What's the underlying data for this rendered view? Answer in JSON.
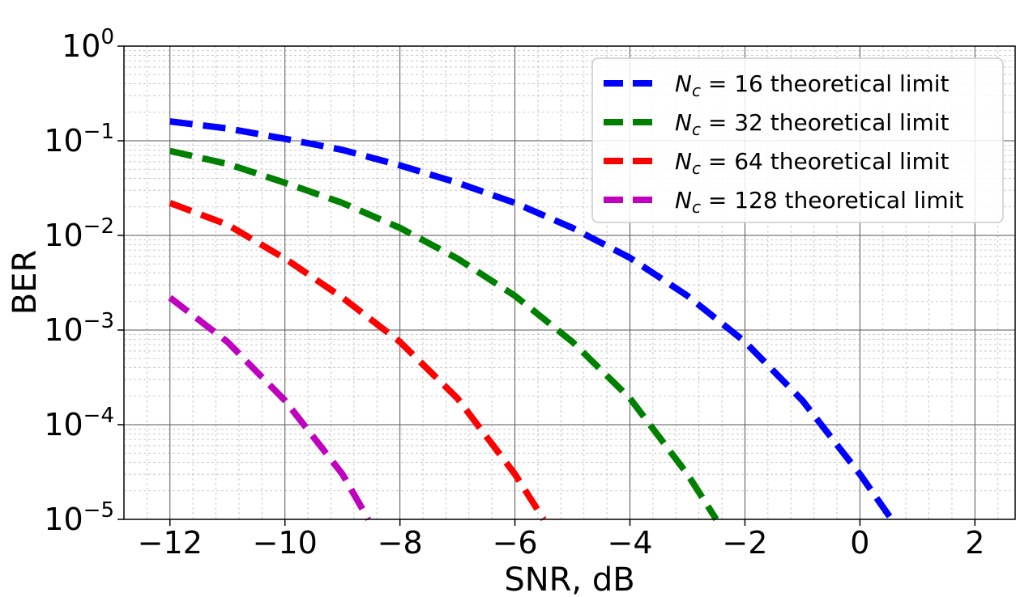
{
  "chart_data": {
    "type": "line",
    "xlabel": "SNR, dB",
    "ylabel": "BER",
    "xlim": [
      -12.8,
      2.7
    ],
    "ylim": [
      1e-05,
      1
    ],
    "yscale": "log",
    "grid": true,
    "minor_grid": true,
    "legend_position": "top-right",
    "x_ticks": [
      -12,
      -10,
      -8,
      -6,
      -4,
      -2,
      0,
      2
    ],
    "x_tick_labels": [
      "−12",
      "−10",
      "−8",
      "−6",
      "−4",
      "−2",
      "0",
      "2"
    ],
    "y_ticks": [
      1,
      0.1,
      0.01,
      0.001,
      0.0001,
      1e-05
    ],
    "y_tick_labels": [
      {
        "base": "10",
        "exp": "0"
      },
      {
        "base": "10",
        "exp": "−1"
      },
      {
        "base": "10",
        "exp": "−2"
      },
      {
        "base": "10",
        "exp": "−3"
      },
      {
        "base": "10",
        "exp": "−4"
      },
      {
        "base": "10",
        "exp": "−5"
      }
    ],
    "series": [
      {
        "name": "N_c = 16 theoretical limit",
        "legend_math": "N",
        "legend_sub": "c",
        "legend_num": "16",
        "legend_rest": "theoretical limit",
        "color": "#0000ff",
        "x": [
          -12,
          -11,
          -10,
          -9,
          -8,
          -7,
          -6,
          -5,
          -4,
          -3,
          -2,
          -1,
          0,
          0.55
        ],
        "y": [
          0.16,
          0.135,
          0.105,
          0.08,
          0.055,
          0.036,
          0.022,
          0.012,
          0.0058,
          0.0023,
          0.00075,
          0.00018,
          3e-05,
          1e-05
        ]
      },
      {
        "name": "N_c = 32 theoretical limit",
        "legend_math": "N",
        "legend_sub": "c",
        "legend_num": "32",
        "legend_rest": "theoretical limit",
        "color": "#008000",
        "x": [
          -12,
          -11,
          -10,
          -9,
          -8,
          -7,
          -6,
          -5,
          -4,
          -3,
          -2.5
        ],
        "y": [
          0.078,
          0.057,
          0.036,
          0.022,
          0.012,
          0.0057,
          0.0023,
          0.00075,
          0.00019,
          3e-05,
          1e-05
        ]
      },
      {
        "name": "N_c = 64 theoretical limit",
        "legend_math": "N",
        "legend_sub": "c",
        "legend_num": "64",
        "legend_rest": "theoretical limit",
        "color": "#ff0000",
        "x": [
          -12,
          -11,
          -10,
          -9,
          -8,
          -7,
          -6,
          -5.5
        ],
        "y": [
          0.022,
          0.013,
          0.0057,
          0.0022,
          0.00075,
          0.00019,
          3e-05,
          1e-05
        ]
      },
      {
        "name": "N_c = 128 theoretical limit",
        "legend_math": "N",
        "legend_sub": "c",
        "legend_num": "128",
        "legend_rest": "theoretical limit",
        "color": "#bf00bf",
        "x": [
          -12,
          -11,
          -10,
          -9,
          -8.55
        ],
        "y": [
          0.0022,
          0.00075,
          0.00018,
          3e-05,
          1e-05
        ]
      }
    ]
  }
}
